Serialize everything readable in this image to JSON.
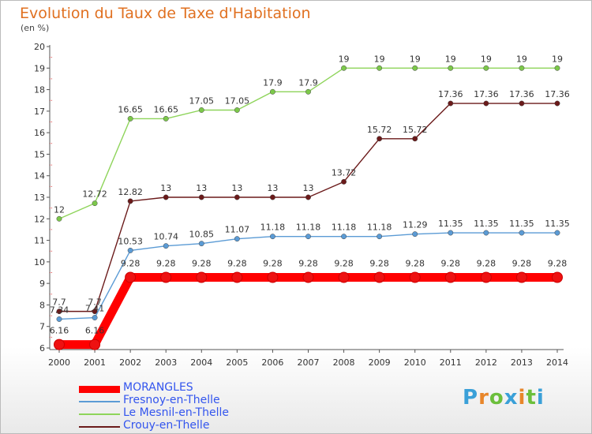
{
  "chart_data": {
    "type": "line",
    "title": "Evolution du Taux de Taxe d'Habitation",
    "unit_label": "(en %)",
    "x": [
      "2000",
      "2001",
      "2002",
      "2003",
      "2004",
      "2005",
      "2006",
      "2007",
      "2008",
      "2009",
      "2010",
      "2011",
      "2012",
      "2013",
      "2014"
    ],
    "ylim": [
      6,
      20
    ],
    "yticks": [
      6,
      7,
      8,
      9,
      10,
      11,
      12,
      13,
      14,
      15,
      16,
      17,
      18,
      19,
      20
    ],
    "grid": false,
    "legend_position": "bottom-left",
    "series": [
      {
        "name": "Crouy-en-Thelle",
        "color": "#6b1a1a",
        "marker_color": "#6b1a1a",
        "labels": [
          "7.7",
          "7.7",
          "12.82",
          "13",
          "13",
          "13",
          "13",
          "13",
          "13.72",
          "15.72",
          "15.72",
          "17.36",
          "17.36",
          "17.36",
          "17.36"
        ],
        "values": [
          7.7,
          7.7,
          12.82,
          13,
          13,
          13,
          13,
          13,
          13.72,
          15.72,
          15.72,
          17.36,
          17.36,
          17.36,
          17.36
        ]
      },
      {
        "name": "Le Mesnil-en-Thelle",
        "color": "#8ed45a",
        "marker_color": "#7cc84a",
        "labels": [
          "12",
          "12.72",
          "16.65",
          "16.65",
          "17.05",
          "17.05",
          "17.9",
          "17.9",
          "19",
          "19",
          "19",
          "19",
          "19",
          "19",
          "19"
        ],
        "values": [
          12,
          12.72,
          16.65,
          16.65,
          17.05,
          17.05,
          17.9,
          17.9,
          19,
          19,
          19,
          19,
          19,
          19,
          19
        ]
      },
      {
        "name": "Fresnoy-en-Thelle",
        "color": "#5b9bd5",
        "marker_color": "#5b9bd5",
        "labels": [
          "7.34",
          "7.41",
          "10.53",
          "10.74",
          "10.85",
          "11.07",
          "11.18",
          "11.18",
          "11.18",
          "11.18",
          "11.29",
          "11.35",
          "11.35",
          "11.35",
          "11.35"
        ],
        "values": [
          7.34,
          7.41,
          10.53,
          10.74,
          10.85,
          11.07,
          11.18,
          11.18,
          11.18,
          11.18,
          11.29,
          11.35,
          11.35,
          11.35,
          11.35
        ]
      },
      {
        "name": "MORANGLES",
        "color": "#ff0000",
        "marker_color": "#ee1111",
        "labels": [
          "6.16",
          "6.16",
          "9.28",
          "9.28",
          "9.28",
          "9.28",
          "9.28",
          "9.28",
          "9.28",
          "9.28",
          "9.28",
          "9.28",
          "9.28",
          "9.28",
          "9.28"
        ],
        "values": [
          6.16,
          6.16,
          9.28,
          9.28,
          9.28,
          9.28,
          9.28,
          9.28,
          9.28,
          9.28,
          9.28,
          9.28,
          9.28,
          9.28,
          9.28
        ]
      }
    ]
  },
  "legend": [
    {
      "name": "MORANGLES",
      "color": "#ff0000",
      "text_color": "#3355ee",
      "thick": true
    },
    {
      "name": "Fresnoy-en-Thelle",
      "color": "#5b9bd5",
      "text_color": "#3355ee",
      "thick": false
    },
    {
      "name": "Le Mesnil-en-Thelle",
      "color": "#8ed45a",
      "text_color": "#3355ee",
      "thick": false
    },
    {
      "name": "Crouy-en-Thelle",
      "color": "#6b1a1a",
      "text_color": "#3355ee",
      "thick": false
    }
  ],
  "logo": {
    "text": "Proxiti"
  }
}
